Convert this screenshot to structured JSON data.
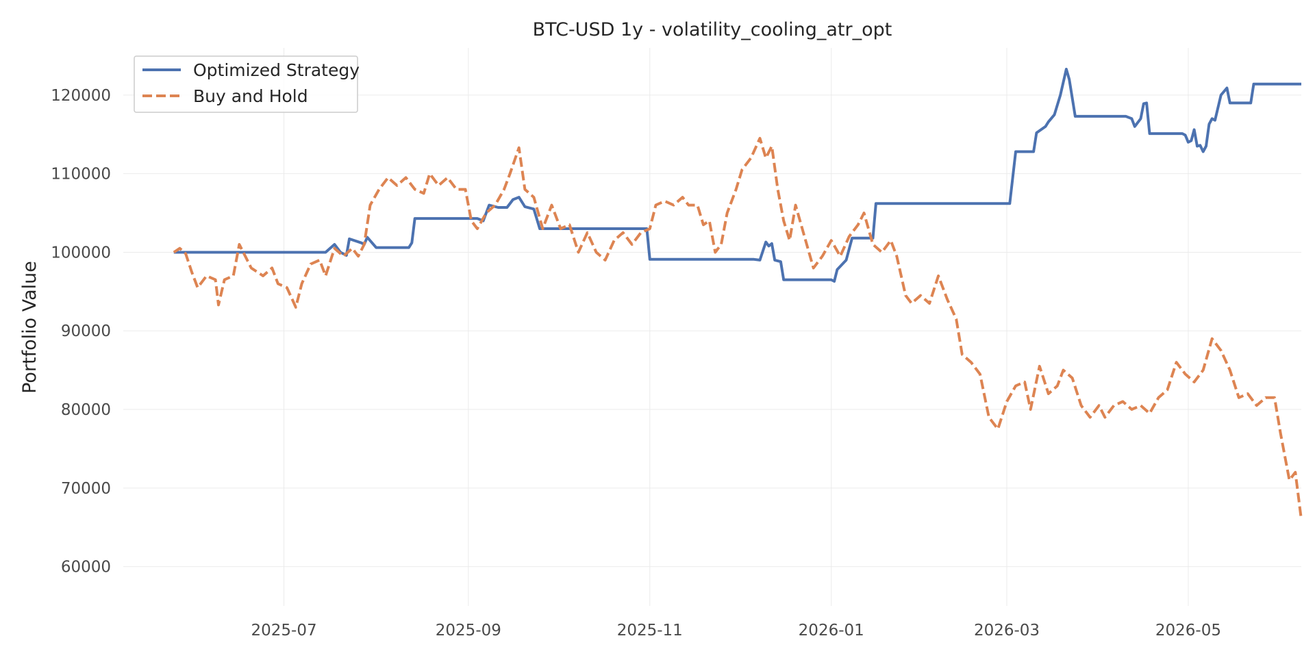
{
  "chart_data": {
    "type": "line",
    "title": "BTC-USD 1y - volatility_cooling_atr_opt",
    "xlabel": "",
    "ylabel": "Portfolio Value",
    "x_ticks": [
      "2025-07",
      "2025-09",
      "2025-11",
      "2026-01",
      "2026-03",
      "2026-05"
    ],
    "y_ticks": [
      60000,
      70000,
      80000,
      90000,
      100000,
      110000,
      120000
    ],
    "xlim": [
      "2025-05-08",
      "2026-06-08"
    ],
    "ylim": [
      55000,
      126000
    ],
    "grid": true,
    "legend_position": "top-left",
    "series": [
      {
        "name": "Optimized Strategy",
        "color": "#4c72b0",
        "style": "solid",
        "points": [
          [
            "2025-05-25",
            100000
          ],
          [
            "2025-07-15",
            100000
          ],
          [
            "2025-07-18",
            101000
          ],
          [
            "2025-07-20",
            100000
          ],
          [
            "2025-07-22",
            99600
          ],
          [
            "2025-07-23",
            101700
          ],
          [
            "2025-07-27",
            101200
          ],
          [
            "2025-07-28",
            101000
          ],
          [
            "2025-07-29",
            101900
          ],
          [
            "2025-08-01",
            100600
          ],
          [
            "2025-08-12",
            100600
          ],
          [
            "2025-08-13",
            101200
          ],
          [
            "2025-08-14",
            104300
          ],
          [
            "2025-09-04",
            104300
          ],
          [
            "2025-09-06",
            104000
          ],
          [
            "2025-09-08",
            106000
          ],
          [
            "2025-09-11",
            105700
          ],
          [
            "2025-09-14",
            105700
          ],
          [
            "2025-09-16",
            106700
          ],
          [
            "2025-09-18",
            107000
          ],
          [
            "2025-09-20",
            105800
          ],
          [
            "2025-09-23",
            105500
          ],
          [
            "2025-09-25",
            103000
          ],
          [
            "2025-10-30",
            103000
          ],
          [
            "2025-10-31",
            103000
          ],
          [
            "2025-11-01",
            99100
          ],
          [
            "2025-12-06",
            99100
          ],
          [
            "2025-12-08",
            99000
          ],
          [
            "2025-12-10",
            101300
          ],
          [
            "2025-12-11",
            100800
          ],
          [
            "2025-12-12",
            101100
          ],
          [
            "2025-12-13",
            99000
          ],
          [
            "2025-12-15",
            98800
          ],
          [
            "2025-12-16",
            96500
          ],
          [
            "2026-01-01",
            96500
          ],
          [
            "2026-01-02",
            96300
          ],
          [
            "2026-01-03",
            97800
          ],
          [
            "2026-01-06",
            99000
          ],
          [
            "2026-01-08",
            101800
          ],
          [
            "2026-01-14",
            101800
          ],
          [
            "2026-01-15",
            101800
          ],
          [
            "2026-01-16",
            106200
          ],
          [
            "2026-03-01",
            106200
          ],
          [
            "2026-03-02",
            106200
          ],
          [
            "2026-03-04",
            112800
          ],
          [
            "2026-03-10",
            112800
          ],
          [
            "2026-03-11",
            115200
          ],
          [
            "2026-03-14",
            116000
          ],
          [
            "2026-03-15",
            116600
          ],
          [
            "2026-03-17",
            117500
          ],
          [
            "2026-03-19",
            120000
          ],
          [
            "2026-03-21",
            123300
          ],
          [
            "2026-03-22",
            122000
          ],
          [
            "2026-03-24",
            117300
          ],
          [
            "2026-04-10",
            117300
          ],
          [
            "2026-04-12",
            117000
          ],
          [
            "2026-04-13",
            116000
          ],
          [
            "2026-04-15",
            117000
          ],
          [
            "2026-04-16",
            118900
          ],
          [
            "2026-04-17",
            119000
          ],
          [
            "2026-04-18",
            115100
          ],
          [
            "2026-04-29",
            115100
          ],
          [
            "2026-04-30",
            114900
          ],
          [
            "2026-05-01",
            114000
          ],
          [
            "2026-05-02",
            114200
          ],
          [
            "2026-05-03",
            115600
          ],
          [
            "2026-05-04",
            113500
          ],
          [
            "2026-05-05",
            113600
          ],
          [
            "2026-05-06",
            112800
          ],
          [
            "2026-05-07",
            113500
          ],
          [
            "2026-05-08",
            116300
          ],
          [
            "2026-05-09",
            117000
          ],
          [
            "2026-05-10",
            116800
          ],
          [
            "2026-05-12",
            120000
          ],
          [
            "2026-05-14",
            120900
          ],
          [
            "2026-05-15",
            119000
          ],
          [
            "2026-05-22",
            119000
          ],
          [
            "2026-05-23",
            121400
          ],
          [
            "2026-06-08",
            121400
          ]
        ]
      },
      {
        "name": "Buy and Hold",
        "color": "#dd8452",
        "style": "dashed",
        "points": [
          [
            "2025-05-25",
            100000
          ],
          [
            "2025-05-27",
            100500
          ],
          [
            "2025-05-29",
            99800
          ],
          [
            "2025-05-31",
            97500
          ],
          [
            "2025-06-02",
            95500
          ],
          [
            "2025-06-05",
            97000
          ],
          [
            "2025-06-08",
            96500
          ],
          [
            "2025-06-09",
            93300
          ],
          [
            "2025-06-11",
            96500
          ],
          [
            "2025-06-14",
            97000
          ],
          [
            "2025-06-16",
            101000
          ],
          [
            "2025-06-20",
            98000
          ],
          [
            "2025-06-24",
            97000
          ],
          [
            "2025-06-27",
            98000
          ],
          [
            "2025-06-29",
            96000
          ],
          [
            "2025-07-02",
            95500
          ],
          [
            "2025-07-05",
            93000
          ],
          [
            "2025-07-07",
            96000
          ],
          [
            "2025-07-10",
            98500
          ],
          [
            "2025-07-13",
            99000
          ],
          [
            "2025-07-15",
            97000
          ],
          [
            "2025-07-18",
            100500
          ],
          [
            "2025-07-21",
            99500
          ],
          [
            "2025-07-24",
            100500
          ],
          [
            "2025-07-26",
            99500
          ],
          [
            "2025-07-28",
            101000
          ],
          [
            "2025-07-30",
            106000
          ],
          [
            "2025-08-02",
            108000
          ],
          [
            "2025-08-05",
            109500
          ],
          [
            "2025-08-08",
            108500
          ],
          [
            "2025-08-11",
            109500
          ],
          [
            "2025-08-14",
            108000
          ],
          [
            "2025-08-17",
            107500
          ],
          [
            "2025-08-19",
            110000
          ],
          [
            "2025-08-22",
            108500
          ],
          [
            "2025-08-25",
            109500
          ],
          [
            "2025-08-28",
            108000
          ],
          [
            "2025-08-31",
            108000
          ],
          [
            "2025-09-02",
            104000
          ],
          [
            "2025-09-04",
            103000
          ],
          [
            "2025-09-07",
            105000
          ],
          [
            "2025-09-10",
            106000
          ],
          [
            "2025-09-13",
            108000
          ],
          [
            "2025-09-15",
            110000
          ],
          [
            "2025-09-18",
            113300
          ],
          [
            "2025-09-20",
            108000
          ],
          [
            "2025-09-23",
            107000
          ],
          [
            "2025-09-26",
            103000
          ],
          [
            "2025-09-29",
            106000
          ],
          [
            "2025-10-02",
            103000
          ],
          [
            "2025-10-05",
            103500
          ],
          [
            "2025-10-08",
            100000
          ],
          [
            "2025-10-11",
            102500
          ],
          [
            "2025-10-14",
            100000
          ],
          [
            "2025-10-17",
            99000
          ],
          [
            "2025-10-20",
            101500
          ],
          [
            "2025-10-23",
            102500
          ],
          [
            "2025-10-26",
            101000
          ],
          [
            "2025-10-29",
            102500
          ],
          [
            "2025-11-01",
            103000
          ],
          [
            "2025-11-03",
            106000
          ],
          [
            "2025-11-06",
            106500
          ],
          [
            "2025-11-09",
            106000
          ],
          [
            "2025-11-12",
            107000
          ],
          [
            "2025-11-14",
            106000
          ],
          [
            "2025-11-17",
            106000
          ],
          [
            "2025-11-19",
            103500
          ],
          [
            "2025-11-21",
            104000
          ],
          [
            "2025-11-23",
            100000
          ],
          [
            "2025-11-25",
            101000
          ],
          [
            "2025-11-27",
            105000
          ],
          [
            "2025-11-30",
            108000
          ],
          [
            "2025-12-02",
            110500
          ],
          [
            "2025-12-05",
            112000
          ],
          [
            "2025-12-08",
            114500
          ],
          [
            "2025-12-10",
            112000
          ],
          [
            "2025-12-12",
            113500
          ],
          [
            "2025-12-14",
            108000
          ],
          [
            "2025-12-16",
            104000
          ],
          [
            "2025-12-18",
            101500
          ],
          [
            "2025-12-20",
            106000
          ],
          [
            "2025-12-23",
            102000
          ],
          [
            "2025-12-26",
            98000
          ],
          [
            "2025-12-29",
            99500
          ],
          [
            "2026-01-01",
            101500
          ],
          [
            "2026-01-04",
            99500
          ],
          [
            "2026-01-07",
            102000
          ],
          [
            "2026-01-10",
            103500
          ],
          [
            "2026-01-12",
            105000
          ],
          [
            "2026-01-15",
            101000
          ],
          [
            "2026-01-18",
            100000
          ],
          [
            "2026-01-21",
            101500
          ],
          [
            "2026-01-23",
            99500
          ],
          [
            "2026-01-26",
            94500
          ],
          [
            "2026-01-28",
            93500
          ],
          [
            "2026-01-31",
            94500
          ],
          [
            "2026-02-03",
            93500
          ],
          [
            "2026-02-06",
            97000
          ],
          [
            "2026-02-09",
            94000
          ],
          [
            "2026-02-12",
            91500
          ],
          [
            "2026-02-14",
            87000
          ],
          [
            "2026-02-17",
            86000
          ],
          [
            "2026-02-20",
            84500
          ],
          [
            "2026-02-23",
            79000
          ],
          [
            "2026-02-26",
            77500
          ],
          [
            "2026-03-01",
            81000
          ],
          [
            "2026-03-04",
            83000
          ],
          [
            "2026-03-07",
            83500
          ],
          [
            "2026-03-09",
            80000
          ],
          [
            "2026-03-12",
            85500
          ],
          [
            "2026-03-15",
            82000
          ],
          [
            "2026-03-18",
            83000
          ],
          [
            "2026-03-20",
            85000
          ],
          [
            "2026-03-23",
            84000
          ],
          [
            "2026-03-26",
            80500
          ],
          [
            "2026-03-29",
            79000
          ],
          [
            "2026-04-01",
            80500
          ],
          [
            "2026-04-03",
            79000
          ],
          [
            "2026-04-06",
            80500
          ],
          [
            "2026-04-09",
            81000
          ],
          [
            "2026-04-12",
            80000
          ],
          [
            "2026-04-15",
            80500
          ],
          [
            "2026-04-18",
            79500
          ],
          [
            "2026-04-21",
            81500
          ],
          [
            "2026-04-24",
            82500
          ],
          [
            "2026-04-27",
            86000
          ],
          [
            "2026-04-30",
            84500
          ],
          [
            "2026-05-03",
            83500
          ],
          [
            "2026-05-06",
            85000
          ],
          [
            "2026-05-09",
            89000
          ],
          [
            "2026-05-12",
            87500
          ],
          [
            "2026-05-15",
            85000
          ],
          [
            "2026-05-18",
            81500
          ],
          [
            "2026-05-21",
            82000
          ],
          [
            "2026-05-24",
            80500
          ],
          [
            "2026-05-27",
            81500
          ],
          [
            "2026-05-30",
            81500
          ],
          [
            "2026-06-01",
            77000
          ],
          [
            "2026-06-04",
            71000
          ],
          [
            "2026-06-06",
            72000
          ],
          [
            "2026-06-08",
            66000
          ]
        ]
      }
    ]
  }
}
